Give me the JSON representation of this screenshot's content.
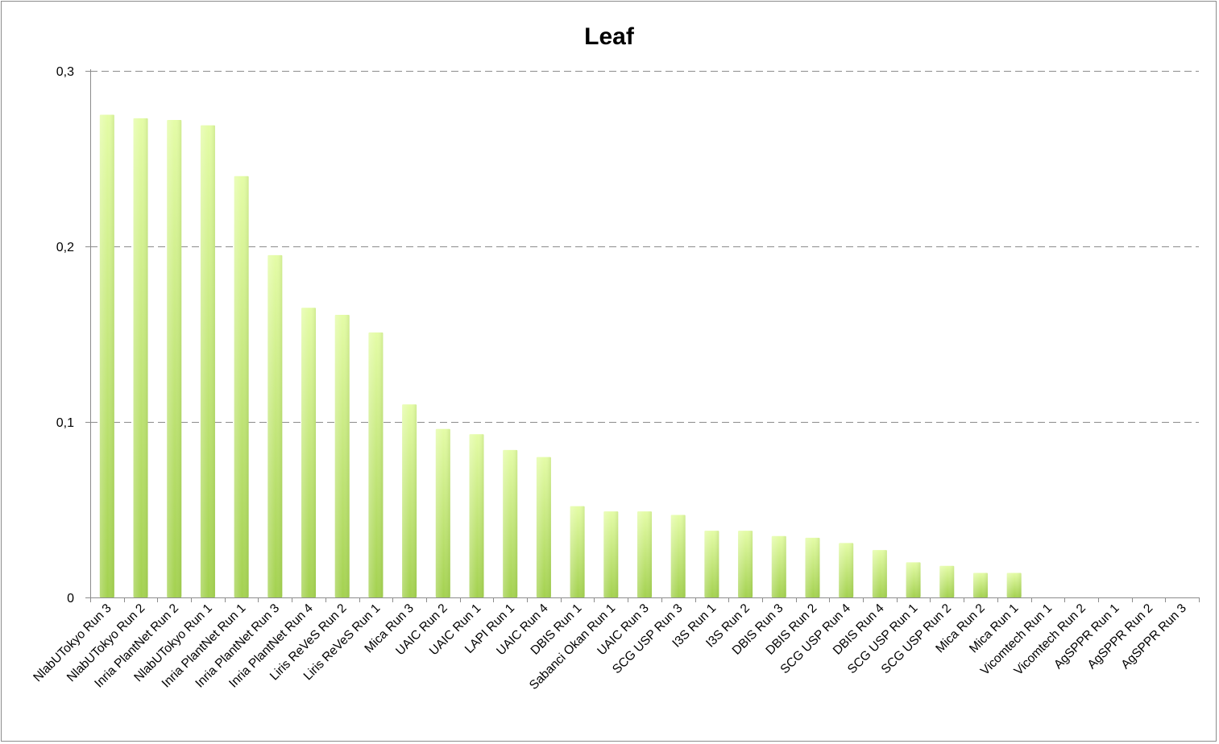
{
  "chart_data": {
    "type": "bar",
    "title": "Leaf",
    "xlabel": "",
    "ylabel": "",
    "ylim": [
      0,
      0.3
    ],
    "yticks": [
      0,
      0.1,
      0.2,
      0.3
    ],
    "ytick_labels": [
      "0",
      "0,1",
      "0,2",
      "0,3"
    ],
    "grid": "horizontal dashed",
    "legend": "none",
    "categories": [
      "NlabUTokyo Run 3",
      "NlabUTokyo Run 2",
      "Inria PlantNet Run 2",
      "NlabUTokyo Run 1",
      "Inria PlantNet Run 1",
      "Inria PlantNet Run 3",
      "Inria PlantNet Run 4",
      "Liris ReVeS Run 2",
      "Liris ReVeS Run 1",
      "Mica Run 3",
      "UAIC Run 2",
      "UAIC Run 1",
      "LAPI Run 1",
      "UAIC Run 4",
      "DBIS Run 1",
      "Sabanci Okan Run 1",
      "UAIC Run 3",
      "SCG USP Run 3",
      "I3S Run 1",
      "I3S Run 2",
      "DBIS Run 3",
      "DBIS Run 2",
      "SCG USP Run 4",
      "DBIS Run 4",
      "SCG USP Run 1",
      "SCG USP Run 2",
      "Mica Run 2",
      "Mica Run 1",
      "Vicomtech Run 1",
      "Vicomtech Run 2",
      "AgSPPR Run 1",
      "AgSPPR Run 2",
      "AgSPPR Run 3"
    ],
    "values": [
      0.275,
      0.273,
      0.272,
      0.269,
      0.24,
      0.195,
      0.165,
      0.161,
      0.151,
      0.11,
      0.096,
      0.093,
      0.084,
      0.08,
      0.052,
      0.049,
      0.049,
      0.047,
      0.038,
      0.038,
      0.035,
      0.034,
      0.031,
      0.027,
      0.02,
      0.018,
      0.014,
      0.014,
      0,
      0,
      0,
      0,
      0
    ],
    "colors": {
      "bar_top": "#e4fca6",
      "bar_bottom": "#a3d14f",
      "grid": "#8c8c8c",
      "axis": "#8c8c8c",
      "border": "#8c8c8c"
    }
  }
}
